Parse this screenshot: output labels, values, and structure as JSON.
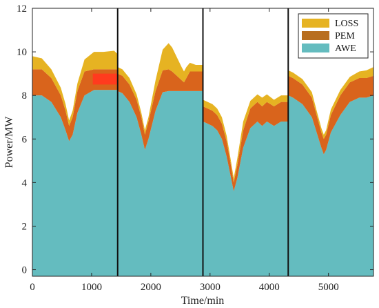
{
  "chart_data": {
    "type": "area",
    "stacked": true,
    "title": "",
    "xlabel": "Time/min",
    "ylabel": "Power/MW",
    "xlim": [
      0,
      5760
    ],
    "ylim": [
      -0.3,
      12
    ],
    "xticks": [
      0,
      1000,
      2000,
      3000,
      4000,
      5000
    ],
    "yticks": [
      0,
      2,
      4,
      6,
      8,
      10,
      12
    ],
    "grid": false,
    "legend_position": "top-right",
    "legend": [
      "LOSS",
      "PEM",
      "AWE"
    ],
    "dividers_x": [
      1440,
      2880,
      4320
    ],
    "colors": {
      "AWE": "#64bcbf",
      "PEM": "#d9641c",
      "LOSS": "#e6b322",
      "legend_pem": "#b86e1f",
      "highlight": "#ff3b1e"
    },
    "x": [
      0,
      160,
      320,
      480,
      560,
      620,
      680,
      760,
      880,
      1040,
      1200,
      1380,
      1439,
      1441,
      1520,
      1640,
      1760,
      1840,
      1900,
      1960,
      2080,
      2200,
      2300,
      2360,
      2440,
      2520,
      2560,
      2600,
      2660,
      2760,
      2879,
      2881,
      2960,
      3040,
      3120,
      3200,
      3280,
      3340,
      3400,
      3460,
      3560,
      3680,
      3800,
      3880,
      3960,
      4080,
      4200,
      4319,
      4321,
      4400,
      4560,
      4720,
      4800,
      4880,
      4920,
      4960,
      5040,
      5200,
      5360,
      5520,
      5640,
      5760
    ],
    "series": [
      {
        "name": "AWE",
        "values": [
          8.0,
          8.0,
          7.7,
          7.0,
          6.4,
          5.9,
          6.2,
          7.2,
          8.0,
          8.25,
          8.25,
          8.25,
          8.25,
          8.2,
          8.1,
          7.7,
          7.0,
          6.2,
          5.5,
          6.0,
          7.3,
          8.15,
          8.2,
          8.2,
          8.2,
          8.2,
          8.2,
          8.2,
          8.2,
          8.2,
          8.2,
          6.8,
          6.7,
          6.6,
          6.4,
          6.0,
          5.2,
          4.4,
          3.6,
          4.2,
          5.6,
          6.5,
          6.8,
          6.6,
          6.8,
          6.6,
          6.8,
          6.8,
          8.0,
          7.9,
          7.6,
          7.0,
          6.3,
          5.6,
          5.3,
          5.5,
          6.3,
          7.1,
          7.7,
          7.9,
          7.9,
          8.0
        ]
      },
      {
        "name": "PEM",
        "values": [
          1.2,
          1.2,
          1.1,
          1.0,
          0.9,
          0.7,
          0.8,
          1.0,
          1.1,
          0.95,
          0.95,
          0.95,
          0.95,
          0.8,
          0.8,
          0.8,
          0.8,
          0.8,
          0.7,
          0.8,
          0.9,
          1.0,
          1.0,
          0.9,
          0.7,
          0.5,
          0.4,
          0.6,
          0.9,
          0.9,
          0.9,
          0.7,
          0.7,
          0.7,
          0.7,
          0.7,
          0.7,
          0.6,
          0.4,
          0.6,
          0.8,
          0.9,
          0.9,
          0.9,
          0.9,
          0.9,
          0.9,
          0.9,
          0.9,
          0.9,
          0.9,
          0.9,
          0.8,
          0.7,
          0.7,
          0.7,
          0.8,
          0.9,
          0.9,
          0.9,
          0.9,
          0.9
        ]
      },
      {
        "name": "LOSS",
        "values": [
          0.6,
          0.5,
          0.4,
          0.35,
          0.3,
          0.25,
          0.3,
          0.35,
          0.55,
          0.8,
          0.8,
          0.85,
          0.7,
          0.3,
          0.3,
          0.3,
          0.25,
          0.2,
          0.2,
          0.2,
          0.5,
          0.95,
          1.2,
          1.1,
          0.85,
          0.6,
          0.5,
          0.5,
          0.4,
          0.3,
          0.3,
          0.3,
          0.3,
          0.3,
          0.3,
          0.3,
          0.25,
          0.2,
          0.2,
          0.3,
          0.4,
          0.35,
          0.35,
          0.4,
          0.35,
          0.3,
          0.3,
          0.3,
          0.25,
          0.25,
          0.25,
          0.25,
          0.2,
          0.2,
          0.2,
          0.2,
          0.25,
          0.25,
          0.25,
          0.3,
          0.35,
          0.4
        ]
      }
    ]
  }
}
